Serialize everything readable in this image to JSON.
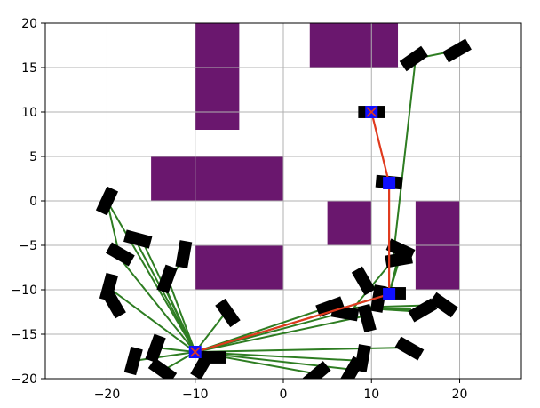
{
  "chart_data": {
    "type": "scatter",
    "xlim": [
      -27,
      27
    ],
    "ylim": [
      -20,
      20
    ],
    "xticks": [
      -20,
      -10,
      0,
      10,
      20
    ],
    "yticks": [
      -20,
      -15,
      -10,
      -5,
      0,
      5,
      10,
      15,
      20
    ],
    "xtick_labels": [
      "−20",
      "−10",
      "0",
      "10",
      "20"
    ],
    "ytick_labels": [
      "−20",
      "−15",
      "−10",
      "−5",
      "0",
      "5",
      "10",
      "15",
      "20"
    ],
    "grid": true,
    "obstacles": [
      {
        "x0": -10,
        "x1": -5,
        "y0": 8,
        "y1": 20
      },
      {
        "x0": 3,
        "x1": 13,
        "y0": 15,
        "y1": 20
      },
      {
        "x0": -15,
        "x1": 0,
        "y0": 0,
        "y1": 5
      },
      {
        "x0": 5,
        "x1": 10,
        "y0": -5,
        "y1": 0
      },
      {
        "x0": 15,
        "x1": 20,
        "y0": -10,
        "y1": 0
      },
      {
        "x0": -10,
        "x1": 0,
        "y0": -10,
        "y1": -5
      }
    ],
    "tree_edges": [
      {
        "from": [
          -10,
          -17
        ],
        "to": [
          -20,
          0
        ]
      },
      {
        "from": [
          -20,
          0
        ],
        "to": [
          -18.5,
          -6.5
        ]
      },
      {
        "from": [
          -10,
          -17
        ],
        "to": [
          -18.5,
          -6.5
        ]
      },
      {
        "from": [
          -10,
          -17
        ],
        "to": [
          -17,
          -4
        ]
      },
      {
        "from": [
          -10,
          -17
        ],
        "to": [
          -16,
          -4.5
        ]
      },
      {
        "from": [
          -10,
          -17
        ],
        "to": [
          -19.5,
          -10
        ]
      },
      {
        "from": [
          -19.5,
          -10
        ],
        "to": [
          -19,
          -11.5
        ]
      },
      {
        "from": [
          -10,
          -17
        ],
        "to": [
          -13,
          -9
        ]
      },
      {
        "from": [
          -13,
          -9
        ],
        "to": [
          -11,
          -6
        ]
      },
      {
        "from": [
          -10,
          -17
        ],
        "to": [
          -13.5,
          -9.5
        ]
      },
      {
        "from": [
          -10,
          -17
        ],
        "to": [
          -6.5,
          -12.5
        ]
      },
      {
        "from": [
          -10,
          -17
        ],
        "to": [
          -14.5,
          -16.5
        ]
      },
      {
        "from": [
          -10,
          -17
        ],
        "to": [
          -17,
          -18
        ]
      },
      {
        "from": [
          -10,
          -17
        ],
        "to": [
          -13.5,
          -19
        ]
      },
      {
        "from": [
          -10,
          -17
        ],
        "to": [
          -9,
          -18.5
        ]
      },
      {
        "from": [
          -10,
          -17
        ],
        "to": [
          -8,
          -17.5
        ]
      },
      {
        "from": [
          -10,
          -17
        ],
        "to": [
          4,
          -19.5
        ]
      },
      {
        "from": [
          -10,
          -17
        ],
        "to": [
          8,
          -19
        ]
      },
      {
        "from": [
          -10,
          -17
        ],
        "to": [
          9,
          -18
        ]
      },
      {
        "from": [
          -10,
          -17
        ],
        "to": [
          14,
          -16.5
        ]
      },
      {
        "from": [
          -10,
          -17
        ],
        "to": [
          5,
          -12
        ]
      },
      {
        "from": [
          -10,
          -17
        ],
        "to": [
          7,
          -12.5
        ]
      },
      {
        "from": [
          -10,
          -17
        ],
        "to": [
          9,
          -13
        ]
      },
      {
        "from": [
          -10,
          -17
        ],
        "to": [
          12,
          -10.5
        ]
      },
      {
        "from": [
          12,
          -10.5
        ],
        "to": [
          13,
          -6.5
        ]
      },
      {
        "from": [
          12,
          -10.5
        ],
        "to": [
          13.5,
          -5.5
        ]
      },
      {
        "from": [
          12,
          -10.5
        ],
        "to": [
          9,
          -9
        ]
      },
      {
        "from": [
          12,
          -10.5
        ],
        "to": [
          11,
          -11
        ]
      },
      {
        "from": [
          8,
          -12
        ],
        "to": [
          13,
          -6
        ]
      },
      {
        "from": [
          8,
          -12
        ],
        "to": [
          16,
          -12.5
        ]
      },
      {
        "from": [
          8,
          -12
        ],
        "to": [
          18,
          -11.7
        ]
      },
      {
        "from": [
          9,
          -12.2
        ],
        "to": [
          14.5,
          -12.2
        ]
      },
      {
        "from": [
          12.5,
          -6
        ],
        "to": [
          15,
          16
        ]
      },
      {
        "from": [
          15,
          16
        ],
        "to": [
          20,
          17
        ]
      }
    ],
    "path": [
      [
        -10,
        -17
      ],
      [
        12,
        -10.5
      ],
      [
        12,
        2
      ],
      [
        10,
        10
      ]
    ],
    "path_nodes": [
      [
        -10,
        -17
      ],
      [
        12,
        -10.5
      ],
      [
        12,
        2
      ],
      [
        10,
        10
      ]
    ],
    "start": [
      -10,
      -17
    ],
    "goal": [
      10,
      10
    ],
    "vehicles": [
      {
        "x": -20,
        "y": 0,
        "theta": 65
      },
      {
        "x": -16.5,
        "y": -4.3,
        "theta": -15
      },
      {
        "x": -18.5,
        "y": -6,
        "theta": -30
      },
      {
        "x": -11.3,
        "y": -6,
        "theta": 80
      },
      {
        "x": -19.8,
        "y": -9.7,
        "theta": 75
      },
      {
        "x": -19.2,
        "y": -11.6,
        "theta": -60
      },
      {
        "x": -13.2,
        "y": -8.8,
        "theta": 70
      },
      {
        "x": -6.3,
        "y": -12.6,
        "theta": -55
      },
      {
        "x": -14.5,
        "y": -16.6,
        "theta": 70
      },
      {
        "x": -17,
        "y": -18,
        "theta": 75
      },
      {
        "x": -13.7,
        "y": -19.1,
        "theta": -35
      },
      {
        "x": -9.2,
        "y": -18.5,
        "theta": 60
      },
      {
        "x": -8,
        "y": -17.6,
        "theta": 0
      },
      {
        "x": 5.3,
        "y": -11.9,
        "theta": 20
      },
      {
        "x": 7,
        "y": -12.6,
        "theta": -10
      },
      {
        "x": 9.5,
        "y": -13.2,
        "theta": -75
      },
      {
        "x": 9.1,
        "y": -9,
        "theta": -60
      },
      {
        "x": 10.8,
        "y": -11,
        "theta": 80
      },
      {
        "x": 12.4,
        "y": -10.4,
        "theta": 0
      },
      {
        "x": 13.3,
        "y": -5.5,
        "theta": -25
      },
      {
        "x": 13.1,
        "y": -6.6,
        "theta": 10
      },
      {
        "x": 15.8,
        "y": -12.3,
        "theta": 30
      },
      {
        "x": 18.2,
        "y": -11.7,
        "theta": -35
      },
      {
        "x": 14.3,
        "y": -16.6,
        "theta": -30
      },
      {
        "x": 9,
        "y": -17.7,
        "theta": 80
      },
      {
        "x": 7.8,
        "y": -19.1,
        "theta": 60
      },
      {
        "x": 3.8,
        "y": -19.5,
        "theta": 40
      },
      {
        "x": 14.8,
        "y": 16,
        "theta": 35
      },
      {
        "x": 19.7,
        "y": 16.9,
        "theta": 30
      },
      {
        "x": 10,
        "y": 10,
        "theta": 0
      },
      {
        "x": 12,
        "y": 2.1,
        "theta": -5
      }
    ]
  }
}
